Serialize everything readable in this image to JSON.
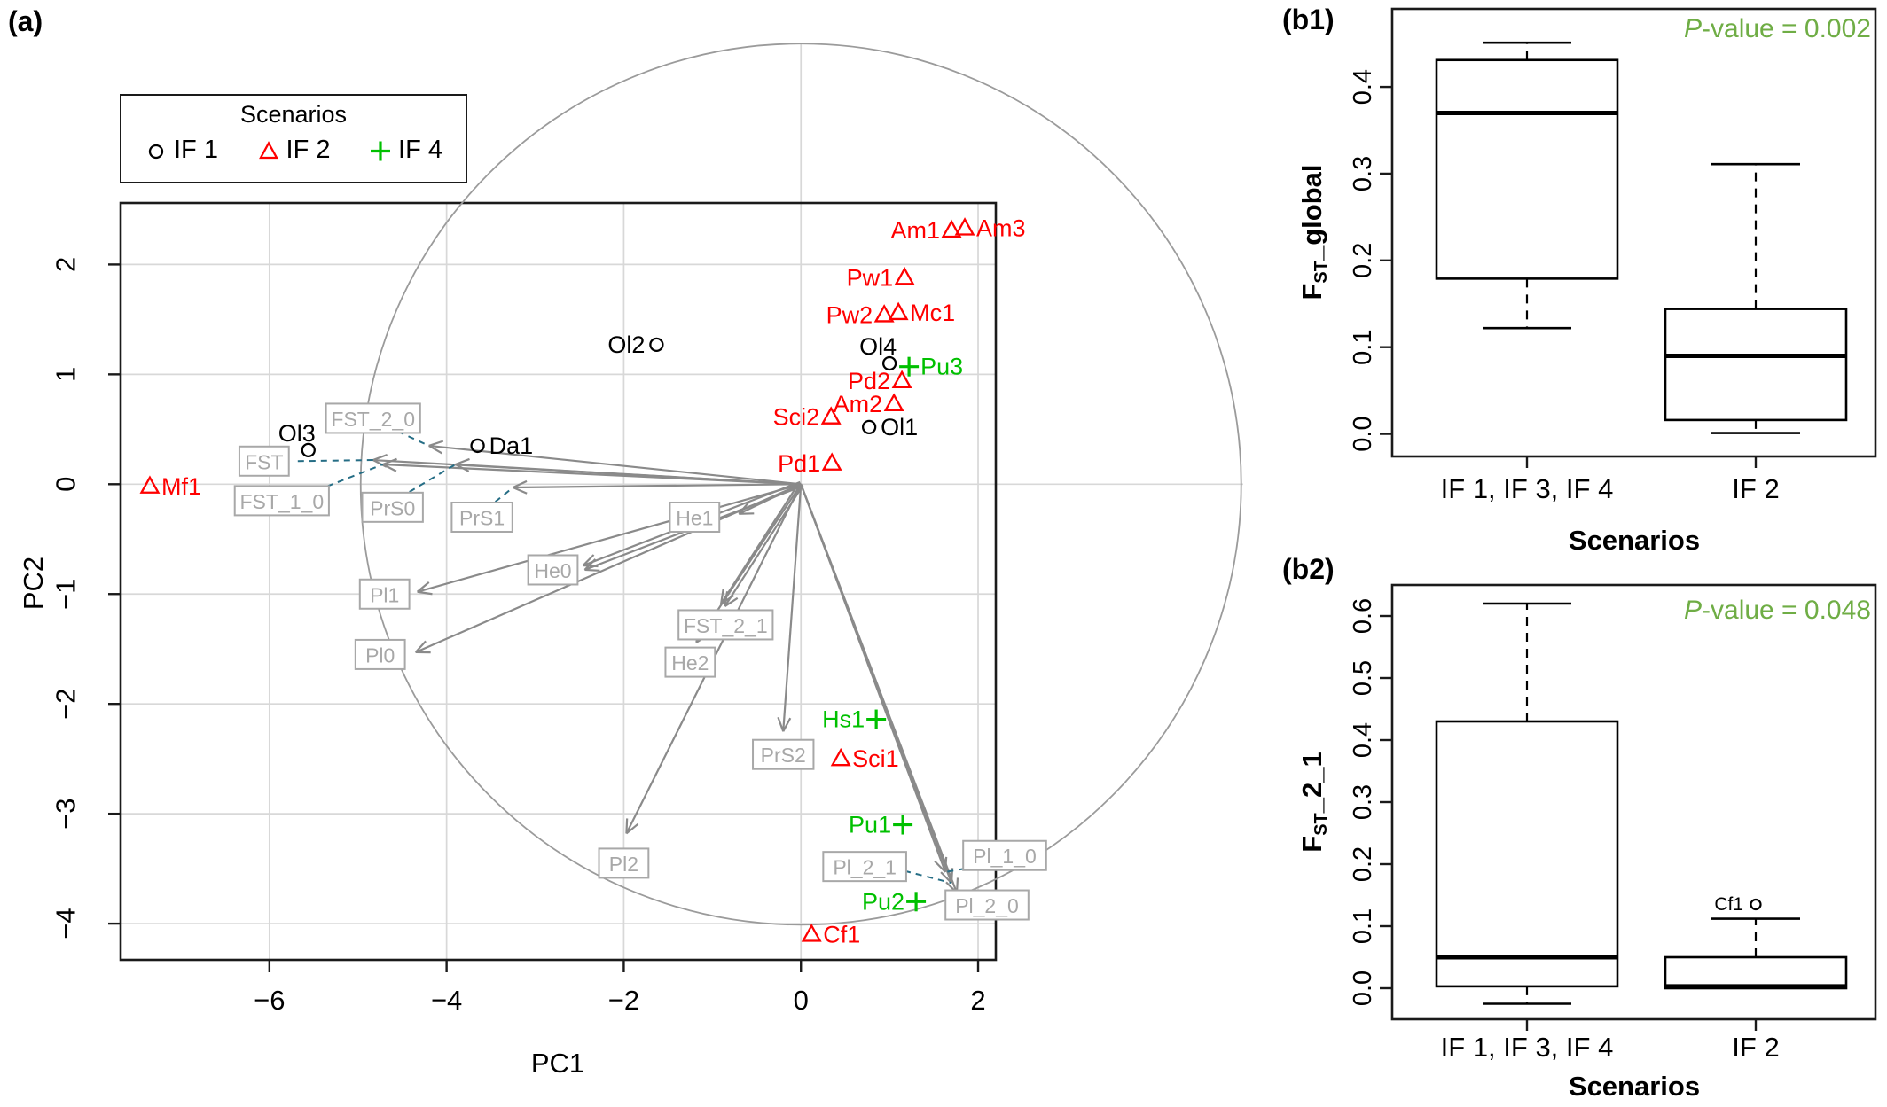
{
  "figure": {
    "panel_a_tag": "(a)",
    "panel_b1_tag": "(b1)",
    "panel_b2_tag": "(b2)"
  },
  "colors": {
    "if1": "#000000",
    "if2": "#ff0000",
    "if4": "#00c000",
    "p_value": "#6fad45",
    "arrow": "#8a8a8a",
    "var_box": "#a8a8a8",
    "dashed_link": "#256d85",
    "grid": "#d8d8d8",
    "circle": "#9b9b9b"
  },
  "legend": {
    "title": "Scenarios",
    "items": [
      {
        "label": "IF 1",
        "marker": "circle",
        "color": "#000000"
      },
      {
        "label": "IF 2",
        "marker": "triangle",
        "color": "#ff0000"
      },
      {
        "label": "IF 4",
        "marker": "plus",
        "color": "#00c000"
      }
    ]
  },
  "chart_data": [
    {
      "id": "pca_biplot",
      "type": "scatter",
      "xlabel": "PC1",
      "ylabel": "PC2",
      "xlim": [
        -7.68,
        2.2
      ],
      "ylim": [
        -4.33,
        2.56
      ],
      "xticks": [
        -6,
        -4,
        -2,
        0,
        2
      ],
      "yticks": [
        2,
        1,
        0,
        -1,
        -2,
        -3,
        -4
      ],
      "grid": true,
      "unit_circle": {
        "cx": 0,
        "cy": 0,
        "rx": 4.97,
        "ry": 4.01
      },
      "points": [
        {
          "label": "Am1",
          "scenario": "IF 2",
          "x": 1.7,
          "y": 2.31,
          "side": "left"
        },
        {
          "label": "Am3",
          "scenario": "IF 2",
          "x": 1.85,
          "y": 2.33,
          "side": "right"
        },
        {
          "label": "Pw1",
          "scenario": "IF 2",
          "x": 1.17,
          "y": 1.88,
          "side": "left"
        },
        {
          "label": "Pw2",
          "scenario": "IF 2",
          "x": 0.94,
          "y": 1.54,
          "side": "left"
        },
        {
          "label": "Mc1",
          "scenario": "IF 2",
          "x": 1.1,
          "y": 1.56,
          "side": "right"
        },
        {
          "label": "Ol2",
          "scenario": "IF 1",
          "x": -1.63,
          "y": 1.27,
          "side": "left"
        },
        {
          "label": "Ol4",
          "scenario": "IF 1",
          "x": 1.0,
          "y": 1.1,
          "side": "above"
        },
        {
          "label": "Pu3",
          "scenario": "IF 4",
          "x": 1.22,
          "y": 1.07,
          "side": "right"
        },
        {
          "label": "Pd2",
          "scenario": "IF 2",
          "x": 1.14,
          "y": 0.94,
          "side": "left"
        },
        {
          "label": "Am2",
          "scenario": "IF 2",
          "x": 1.05,
          "y": 0.73,
          "side": "left"
        },
        {
          "label": "Sci2",
          "scenario": "IF 2",
          "x": 0.34,
          "y": 0.61,
          "side": "left"
        },
        {
          "label": "Ol1",
          "scenario": "IF 1",
          "x": 0.77,
          "y": 0.52,
          "side": "right"
        },
        {
          "label": "Ol3",
          "scenario": "IF 1",
          "x": -5.56,
          "y": 0.31,
          "side": "above"
        },
        {
          "label": "Da1",
          "scenario": "IF 1",
          "x": -3.65,
          "y": 0.35,
          "side": "right"
        },
        {
          "label": "Pd1",
          "scenario": "IF 2",
          "x": 0.35,
          "y": 0.19,
          "side": "left"
        },
        {
          "label": "Mf1",
          "scenario": "IF 2",
          "x": -7.35,
          "y": -0.02,
          "side": "right"
        },
        {
          "label": "Hs1",
          "scenario": "IF 4",
          "x": 0.85,
          "y": -2.14,
          "side": "left"
        },
        {
          "label": "Sci1",
          "scenario": "IF 2",
          "x": 0.45,
          "y": -2.5,
          "side": "right"
        },
        {
          "label": "Pu1",
          "scenario": "IF 4",
          "x": 1.15,
          "y": -3.1,
          "side": "left"
        },
        {
          "label": "Pu2",
          "scenario": "IF 4",
          "x": 1.3,
          "y": -3.8,
          "side": "left"
        },
        {
          "label": "Cf1",
          "scenario": "IF 2",
          "x": 0.12,
          "y": -4.1,
          "side": "right"
        }
      ],
      "variables": [
        {
          "label": "FST_2_0",
          "box_x": -4.83,
          "box_y": 0.6,
          "tip_x": -4.2,
          "tip_y": 0.35,
          "dash_from": [
            -4.55,
            0.48
          ]
        },
        {
          "label": "FST",
          "box_x": -6.06,
          "box_y": 0.21,
          "tip_x": -4.83,
          "tip_y": 0.22,
          "dash_from": [
            -5.68,
            0.21
          ]
        },
        {
          "label": "FST_1_0",
          "box_x": -5.86,
          "box_y": -0.15,
          "tip_x": -4.72,
          "tip_y": 0.18,
          "dash_from": [
            -5.35,
            -0.02
          ]
        },
        {
          "label": "PrS0",
          "box_x": -4.61,
          "box_y": -0.21,
          "tip_x": -3.9,
          "tip_y": 0.18,
          "dash_from": [
            -4.42,
            -0.07
          ]
        },
        {
          "label": "PrS1",
          "box_x": -3.6,
          "box_y": -0.3,
          "tip_x": -3.25,
          "tip_y": -0.03,
          "dash_from": [
            -3.45,
            -0.16
          ]
        },
        {
          "label": "He1",
          "box_x": -1.2,
          "box_y": -0.3,
          "tip_x": -0.7,
          "tip_y": -0.27
        },
        {
          "label": "He0",
          "box_x": -2.8,
          "box_y": -0.78,
          "tip_x": -2.45,
          "tip_y": -0.76,
          "double": true
        },
        {
          "label": "Pl1",
          "box_x": -4.7,
          "box_y": -1.0,
          "tip_x": -4.33,
          "tip_y": -0.98
        },
        {
          "label": "Pl0",
          "box_x": -4.75,
          "box_y": -1.55,
          "tip_x": -4.35,
          "tip_y": -1.53
        },
        {
          "label": "FST_2_1",
          "box_x": -0.85,
          "box_y": -1.28,
          "tip_x": -0.88,
          "tip_y": -1.1,
          "double": true
        },
        {
          "label": "He2",
          "box_x": -1.25,
          "box_y": -1.62,
          "tip_x": -1.18,
          "tip_y": -1.44
        },
        {
          "label": "PrS2",
          "box_x": -0.2,
          "box_y": -2.46,
          "tip_x": -0.2,
          "tip_y": -2.25
        },
        {
          "label": "Pl2",
          "box_x": -2.0,
          "box_y": -3.45,
          "tip_x": -1.97,
          "tip_y": -3.18
        },
        {
          "label": "Pl_1_0",
          "box_x": 2.3,
          "box_y": -3.38,
          "tip_x": 1.63,
          "tip_y": -3.53,
          "dash_from": [
            1.85,
            -3.5
          ]
        },
        {
          "label": "Pl_2_1",
          "box_x": 0.72,
          "box_y": -3.48,
          "tip_x": 1.7,
          "tip_y": -3.63,
          "dash_from": [
            1.17,
            -3.52
          ]
        },
        {
          "label": "Pl_2_0",
          "box_x": 2.1,
          "box_y": -3.83,
          "tip_x": 1.76,
          "tip_y": -3.72,
          "dash_from": [
            1.66,
            -3.77
          ]
        }
      ]
    },
    {
      "id": "fst_global_boxplot",
      "type": "box",
      "p_prefix": "P",
      "p_rest": "-value = 0.002",
      "ylabel_pre": "F",
      "ylabel_sub": "ST",
      "ylabel_rest": "_global",
      "xlabel": "Scenarios",
      "categories": [
        "IF 1, IF 3, IF 4",
        "IF 2"
      ],
      "yticks": [
        0.0,
        0.1,
        0.2,
        0.3,
        0.4
      ],
      "ylim": [
        -0.026,
        0.49
      ],
      "boxes": [
        {
          "whisker_low": 0.122,
          "q1": 0.179,
          "median": 0.37,
          "q3": 0.431,
          "whisker_high": 0.451,
          "outliers": []
        },
        {
          "whisker_low": 0.001,
          "q1": 0.016,
          "median": 0.09,
          "q3": 0.144,
          "whisker_high": 0.311,
          "outliers": []
        }
      ]
    },
    {
      "id": "fst_2_1_boxplot",
      "type": "box",
      "p_prefix": "P",
      "p_rest": "-value = 0.048",
      "ylabel_pre": "F",
      "ylabel_sub": "ST",
      "ylabel_rest": "_2_1",
      "xlabel": "Scenarios",
      "categories": [
        "IF 1, IF 3, IF 4",
        "IF 2"
      ],
      "yticks": [
        0.0,
        0.1,
        0.2,
        0.3,
        0.4,
        0.5,
        0.6
      ],
      "ylim": [
        -0.05,
        0.65
      ],
      "boxes": [
        {
          "whisker_low": -0.025,
          "q1": 0.003,
          "median": 0.05,
          "q3": 0.43,
          "whisker_high": 0.62,
          "outliers": []
        },
        {
          "whisker_low": 0.0,
          "q1": 0.0,
          "median": 0.003,
          "q3": 0.05,
          "whisker_high": 0.112,
          "outliers": [
            {
              "value": 0.135,
              "label": "Cf1"
            }
          ]
        }
      ]
    }
  ]
}
